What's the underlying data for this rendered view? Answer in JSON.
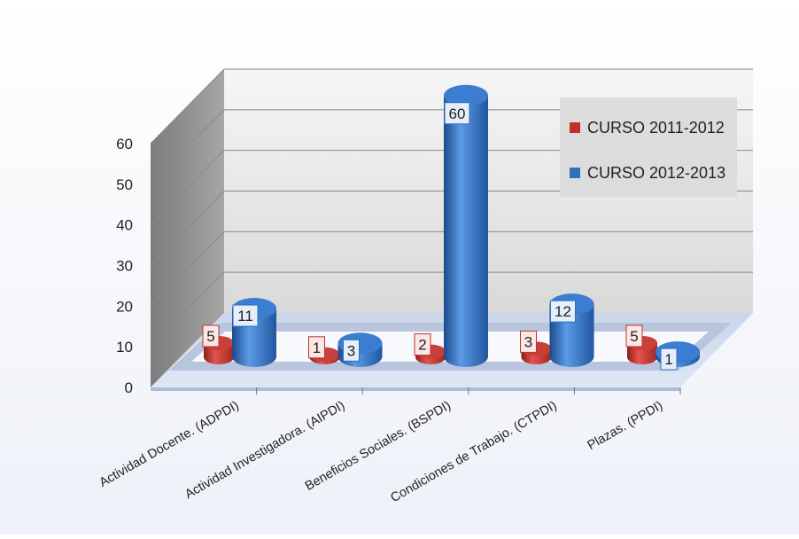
{
  "chart_data": {
    "type": "bar",
    "title": "",
    "xlabel": "",
    "ylabel": "",
    "categories": [
      "Actividad Docente. (ADPDI)",
      "Actividad Investigadora. (AIPDI)",
      "Beneficios Sociales.  (BSPDI)",
      "Condiciones de Trabajo.  (CTPDI)",
      "Plazas.  (PPDI)"
    ],
    "series": [
      {
        "name": "CURSO 2011-2012",
        "values": [
          5,
          1,
          2,
          3,
          5
        ],
        "color": "#c0302b"
      },
      {
        "name": "CURSO 2012-2013",
        "values": [
          11,
          3,
          60,
          12,
          1
        ],
        "color": "#2e6fc0"
      }
    ],
    "yticks": [
      "0",
      "10",
      "20",
      "30",
      "40",
      "50",
      "60"
    ],
    "ylim": [
      0,
      60
    ],
    "grid": true,
    "legend": "top-right",
    "style": "3d-cylinder"
  }
}
